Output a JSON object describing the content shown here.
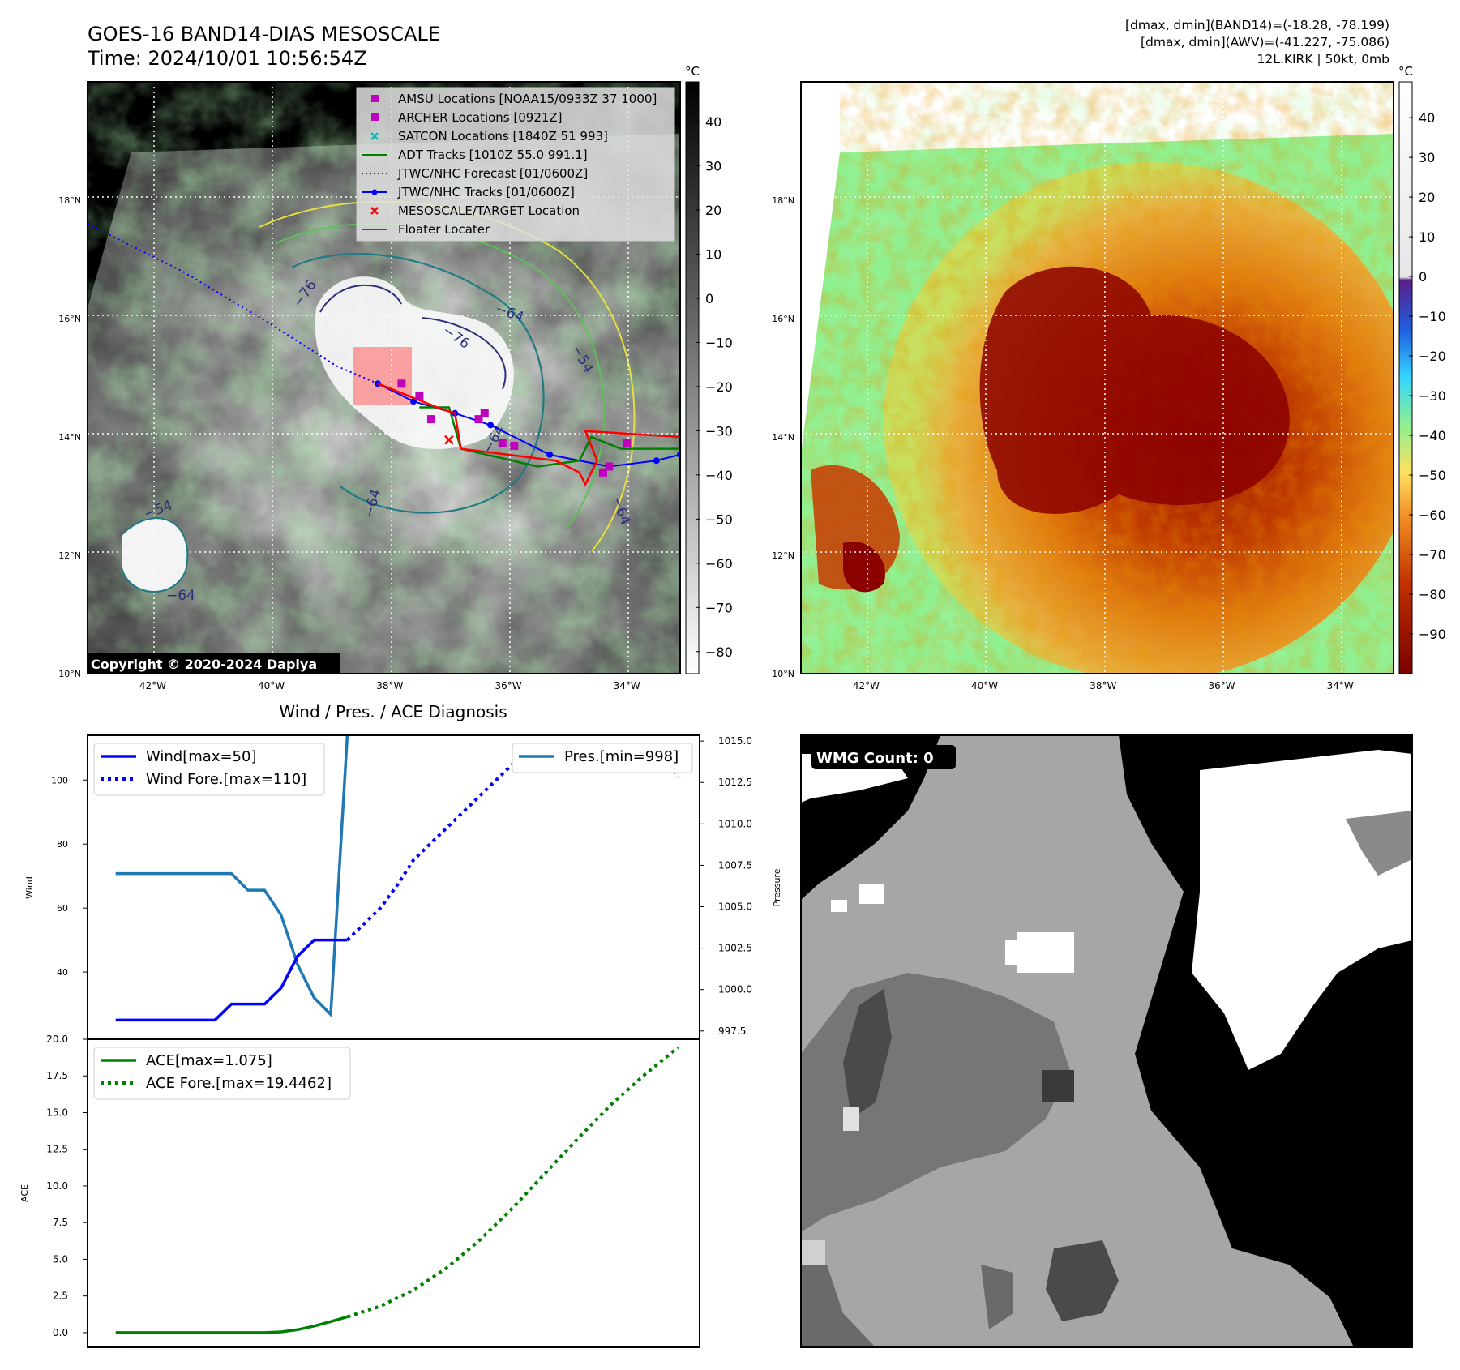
{
  "header": {
    "title_line1": "GOES-16 BAND14-DIAS MESOSCALE",
    "title_line2": "Time: 2024/10/01 10:56:54Z",
    "info_line1": "[dmax, dmin](BAND14)=(-18.28, -78.199)",
    "info_line2": "[dmax, dmin](AWV)=(-41.227, -75.086)",
    "info_line3": "12L.KIRK | 50kt, 0mb"
  },
  "map_axes": {
    "lat_ticks": [
      "18°N",
      "16°N",
      "14°N",
      "12°N",
      "10°N"
    ],
    "lon_ticks": [
      "42°W",
      "40°W",
      "38°W",
      "36°W",
      "34°W"
    ],
    "lat_values": [
      18,
      16,
      14,
      12,
      10
    ],
    "lon_values": [
      -42,
      -40,
      -38,
      -36,
      -34
    ],
    "lat_range": [
      10,
      20
    ],
    "lon_range": [
      -43.1,
      -33.1
    ]
  },
  "colorbar_left": {
    "unit": "°C",
    "ticks": [
      "40",
      "30",
      "20",
      "10",
      "0",
      "−10",
      "−20",
      "−30",
      "−40",
      "−50",
      "−60",
      "−70",
      "−80"
    ],
    "tick_values": [
      40,
      30,
      20,
      10,
      0,
      -10,
      -20,
      -30,
      -40,
      -50,
      -60,
      -70,
      -80
    ],
    "range": [
      -85,
      49
    ]
  },
  "colorbar_right": {
    "unit": "°C",
    "ticks": [
      "40",
      "30",
      "20",
      "10",
      "0",
      "−10",
      "−20",
      "−30",
      "−40",
      "−50",
      "−60",
      "−70",
      "−80",
      "−90"
    ],
    "tick_values": [
      40,
      30,
      20,
      10,
      0,
      -10,
      -20,
      -30,
      -40,
      -50,
      -60,
      -70,
      -80,
      -90
    ],
    "range": [
      -100,
      49
    ]
  },
  "legend": [
    {
      "label": "AMSU Locations [NOAA15/0933Z 37 1000]",
      "marker": "square",
      "color": "#bf00bf"
    },
    {
      "label": "ARCHER Locations [0921Z]",
      "marker": "square",
      "color": "#bf00bf"
    },
    {
      "label": "SATCON Locations [1840Z 51 993]",
      "marker": "x",
      "color": "#00bfbf"
    },
    {
      "label": "ADT Tracks [1010Z 55.0 991.1]",
      "marker": "line",
      "color": "#008000"
    },
    {
      "label": "JTWC/NHC Forecast [01/0600Z]",
      "marker": "dotted",
      "color": "#0000ff"
    },
    {
      "label": "JTWC/NHC Tracks [01/0600Z]",
      "marker": "line-dot",
      "color": "#0000ff"
    },
    {
      "label": "MESOSCALE/TARGET Location",
      "marker": "x",
      "color": "#ff0000"
    },
    {
      "label": "Floater Locater",
      "marker": "line",
      "color": "#ff0000"
    }
  ],
  "contour_labels": [
    "−76",
    "−76",
    "−64",
    "−54",
    "−64",
    "−64",
    "−64",
    "−54",
    "−64"
  ],
  "copyright": "Copyright © 2020-2024 Dapiya",
  "map_points": {
    "jtwc_forecast": [
      [
        -43.1,
        17.6
      ],
      [
        -41.5,
        16.8
      ],
      [
        -40,
        15.9
      ],
      [
        -38.9,
        15.2
      ],
      [
        -38.2,
        14.9
      ]
    ],
    "jtwc_track": [
      [
        -38.2,
        14.9
      ],
      [
        -37.6,
        14.6
      ],
      [
        -36.9,
        14.4
      ],
      [
        -36.3,
        14.2
      ],
      [
        -35.3,
        13.7
      ],
      [
        -34.3,
        13.5
      ],
      [
        -33.5,
        13.6
      ],
      [
        -33.1,
        13.7
      ]
    ],
    "adt_track": [
      [
        -37.5,
        14.5
      ],
      [
        -37.0,
        14.5
      ],
      [
        -36.8,
        13.8
      ],
      [
        -35.5,
        13.5
      ],
      [
        -34.8,
        13.6
      ],
      [
        -34.6,
        14.0
      ],
      [
        -34.1,
        13.8
      ],
      [
        -33.1,
        13.8
      ]
    ],
    "floater_track": [
      [
        -38.2,
        14.9
      ],
      [
        -37.2,
        14.5
      ],
      [
        -36.9,
        14.4
      ],
      [
        -36.8,
        13.8
      ],
      [
        -35.2,
        13.6
      ],
      [
        -34.8,
        13.4
      ],
      [
        -34.7,
        13.2
      ],
      [
        -34.5,
        13.6
      ],
      [
        -34.7,
        14.1
      ],
      [
        -33.1,
        14.0
      ]
    ],
    "amsu": [
      [
        -37.3,
        14.3
      ],
      [
        -36.5,
        14.3
      ],
      [
        -36.4,
        14.4
      ],
      [
        -36.1,
        13.9
      ],
      [
        -35.9,
        13.85
      ],
      [
        -34.4,
        13.4
      ],
      [
        -34.3,
        13.5
      ],
      [
        -34.0,
        13.9
      ],
      [
        -37.8,
        14.9
      ],
      [
        -37.5,
        14.7
      ]
    ],
    "mesoscale_target": [
      -37.0,
      13.95
    ]
  },
  "line_chart": {
    "title": "Wind / Pres. / ACE Diagnosis",
    "ylabel_left": "Wind",
    "ylabel_right": "Pressure",
    "wind_ticks": [
      "40",
      "60",
      "80",
      "100"
    ],
    "wind_tick_values": [
      40,
      60,
      80,
      100
    ],
    "pres_ticks": [
      "997.5",
      "1000.0",
      "1002.5",
      "1005.0",
      "1007.5",
      "1010.0",
      "1012.5",
      "1015.0"
    ],
    "pres_tick_values": [
      997.5,
      1000,
      1002.5,
      1005,
      1007.5,
      1010,
      1012.5,
      1015
    ],
    "legend_wind": "Wind[max=50]",
    "legend_wind_fore": "Wind Fore.[max=110]",
    "legend_pres": "Pres.[min=998]",
    "ylim_wind": [
      19,
      114
    ],
    "ylim_pres": [
      997.0,
      1015.35
    ],
    "xlim": [
      -1.7,
      35.3
    ]
  },
  "ace_chart": {
    "ylabel": "ACE",
    "ticks": [
      "0.0",
      "2.5",
      "5.0",
      "7.5",
      "10.0",
      "12.5",
      "15.0",
      "17.5",
      "20.0"
    ],
    "tick_values": [
      0,
      2.5,
      5,
      7.5,
      10,
      12.5,
      15,
      17.5,
      20
    ],
    "legend_ace": "ACE[max=1.075]",
    "legend_ace_fore": "ACE Fore.[max=19.4462]",
    "ylim": [
      -1,
      20
    ]
  },
  "wmg": {
    "label": "WMG Count: 0"
  },
  "chart_data": [
    {
      "type": "line",
      "title": "Wind / Pres. / ACE Diagnosis",
      "ylabel": "Wind",
      "ylim": [
        19,
        114
      ],
      "series": [
        {
          "name": "Wind[max=50]",
          "x": [
            0,
            1,
            2,
            3,
            4,
            5,
            6,
            7,
            8,
            9,
            10,
            11,
            12,
            13,
            14
          ],
          "values": [
            25,
            25,
            25,
            25,
            25,
            25,
            25,
            30,
            30,
            30,
            35,
            45,
            50,
            50,
            50
          ]
        },
        {
          "name": "Wind Fore.[max=110]",
          "x": [
            14,
            15,
            16,
            17,
            18,
            19,
            20,
            21,
            22,
            23,
            24,
            25,
            26,
            27,
            28,
            29,
            30,
            31,
            32,
            33,
            34
          ],
          "values": [
            50,
            55,
            60,
            67,
            75,
            80,
            85,
            90,
            95,
            100,
            105,
            108,
            110,
            110,
            110,
            110,
            110,
            110,
            109,
            108,
            101
          ]
        }
      ]
    },
    {
      "type": "line",
      "ylabel": "Pressure",
      "ylim": [
        997.0,
        1015.35
      ],
      "series": [
        {
          "name": "Pres.[min=998]",
          "x": [
            0,
            1,
            2,
            3,
            4,
            5,
            6,
            7,
            8,
            9,
            10,
            11,
            12,
            13,
            14
          ],
          "values": [
            1007,
            1007,
            1007,
            1007,
            1007,
            1007,
            1007,
            1007,
            1006,
            1006,
            1004.5,
            1001.5,
            999.5,
            998.5,
            1015.3
          ]
        }
      ]
    },
    {
      "type": "line",
      "ylabel": "ACE",
      "ylim": [
        -1,
        20
      ],
      "series": [
        {
          "name": "ACE[max=1.075]",
          "x": [
            0,
            1,
            2,
            3,
            4,
            5,
            6,
            7,
            8,
            9,
            10,
            11,
            12,
            13,
            14
          ],
          "values": [
            0,
            0,
            0,
            0,
            0,
            0,
            0,
            0,
            0,
            0,
            0.05,
            0.2,
            0.45,
            0.75,
            1.075
          ]
        },
        {
          "name": "ACE Fore.[max=19.4462]",
          "x": [
            14,
            16,
            18,
            20,
            22,
            24,
            26,
            28,
            30,
            32,
            34
          ],
          "values": [
            1.075,
            1.8,
            2.9,
            4.4,
            6.3,
            8.5,
            10.9,
            13.3,
            15.6,
            17.6,
            19.4462
          ]
        }
      ]
    }
  ]
}
